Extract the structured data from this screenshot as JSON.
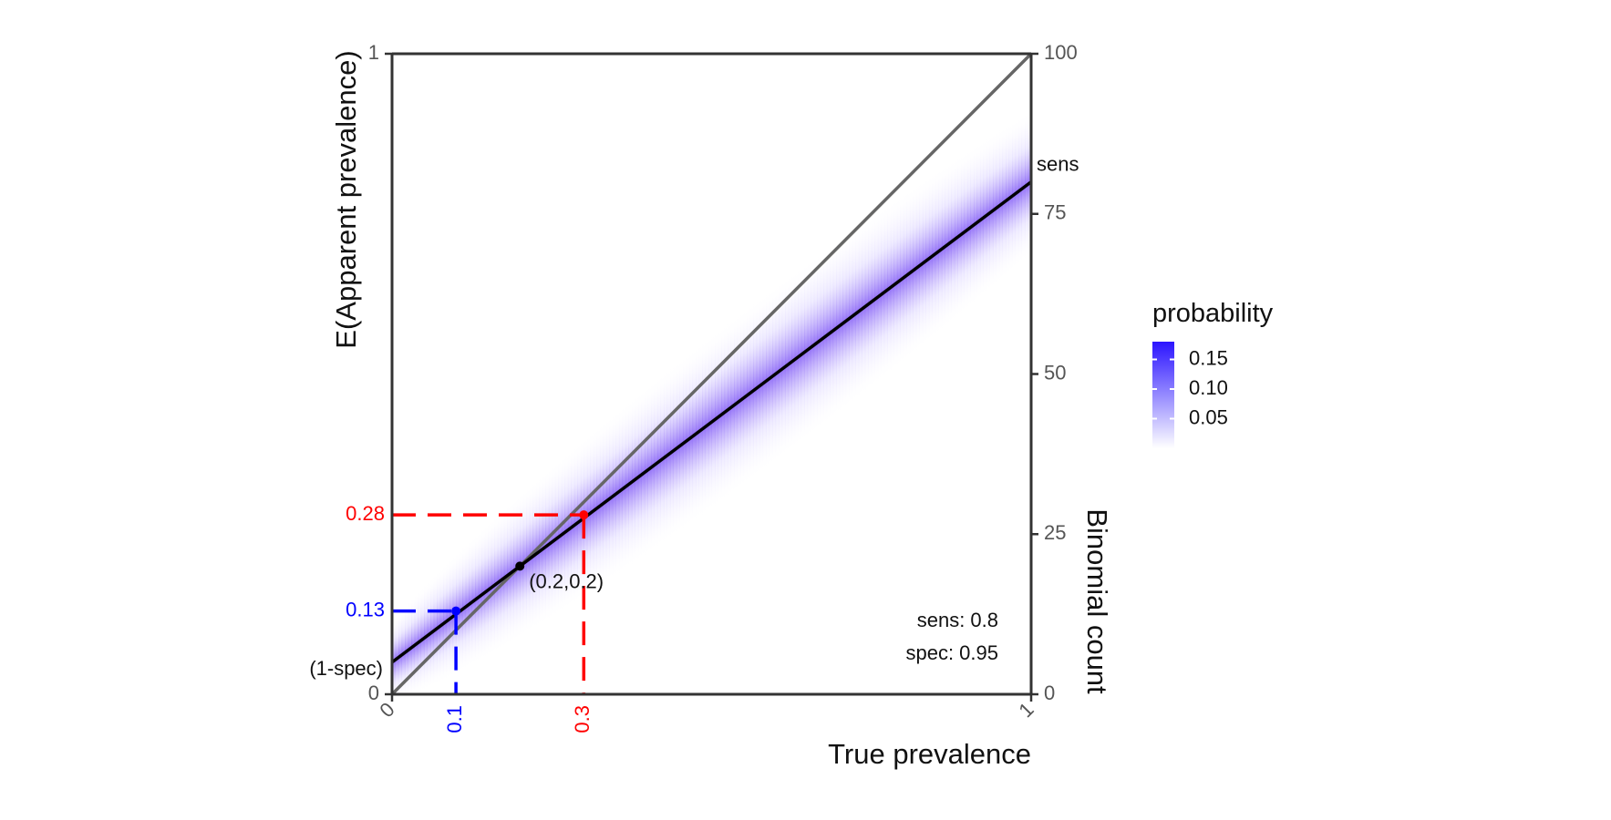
{
  "chart_data": {
    "type": "line",
    "xlabel": "True prevalence",
    "ylabel": "E(Apparent prevalence)",
    "y2label": "Binomial count",
    "xlim": [
      0,
      1
    ],
    "ylim": [
      0,
      1
    ],
    "y2lim": [
      0,
      100
    ],
    "x_ticks": [
      0,
      1
    ],
    "x_tick_labels": [
      "0",
      "1"
    ],
    "y_ticks": [
      0,
      1
    ],
    "y_tick_labels": [
      "0",
      "1"
    ],
    "y2_ticks": [
      0,
      25,
      50,
      75,
      100
    ],
    "y2_tick_labels": [
      "0",
      "25",
      "50",
      "75",
      "100"
    ],
    "sensitivity": 0.8,
    "specificity": 0.95,
    "identity_line": {
      "x": [
        0,
        1
      ],
      "y": [
        0,
        1
      ],
      "color": "#666666"
    },
    "apparent_line": {
      "x": [
        0,
        1
      ],
      "y": [
        0.05,
        0.8
      ],
      "color": "#000000"
    },
    "crossing_point": {
      "x": 0.2,
      "y": 0.2,
      "label": "(0.2,0.2)"
    },
    "guides": [
      {
        "x": 0.1,
        "y": 0.13,
        "x_label": "0.1",
        "y_label": "0.13",
        "color": "#0000ff"
      },
      {
        "x": 0.3,
        "y": 0.28,
        "x_label": "0.3",
        "y_label": "0.28",
        "color": "#ff0000"
      }
    ],
    "annotations": {
      "sens_marker": "sens",
      "spec_marker": "(1-spec)",
      "sens_text": "sens: 0.8",
      "spec_text": "spec: 0.95"
    },
    "legend": {
      "title": "probability",
      "labels": [
        "0.15",
        "0.10",
        "0.05"
      ],
      "values": [
        0.15,
        0.1,
        0.05
      ],
      "range": [
        0,
        0.18
      ],
      "low_color": "#ffffff",
      "high_color": "#2b14ff",
      "position": "right"
    },
    "grid": false
  }
}
